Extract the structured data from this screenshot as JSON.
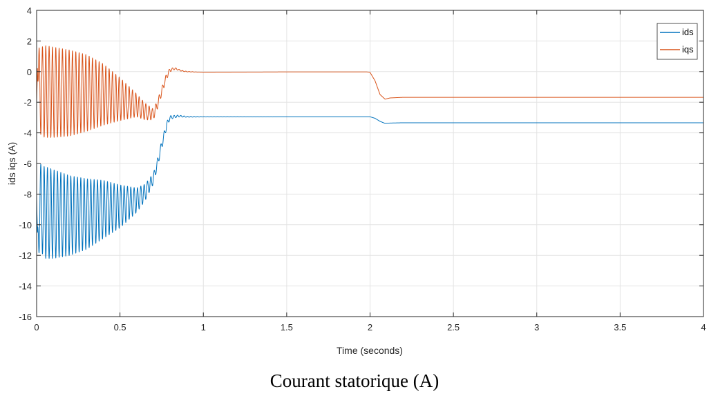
{
  "caption": "Courant statorique (A)",
  "chart_data": {
    "type": "line",
    "title": "",
    "xlabel": "Time (seconds)",
    "ylabel": "ids iqs (A)",
    "xlim": [
      0,
      4
    ],
    "ylim": [
      -16,
      4
    ],
    "x_ticks": [
      0,
      0.5,
      1,
      1.5,
      2,
      2.5,
      3,
      3.5,
      4
    ],
    "x_tick_labels": [
      "0",
      "0.5",
      "1",
      "1.5",
      "2",
      "2.5",
      "3",
      "3.5",
      "4"
    ],
    "y_ticks": [
      4,
      2,
      0,
      -2,
      -4,
      -6,
      -8,
      -10,
      -12,
      -14,
      -16
    ],
    "y_tick_labels": [
      "4",
      "2",
      "0",
      "-2",
      "-4",
      "-6",
      "-8",
      "-10",
      "-12",
      "-14",
      "-16"
    ],
    "grid": true,
    "legend_position": "top-right",
    "series": [
      {
        "name": "ids",
        "color": "#0072BD",
        "x": [
          0,
          0.005,
          0.01,
          0.02,
          0.03,
          0.05,
          0.1,
          0.2,
          0.3,
          0.4,
          0.5,
          0.6,
          0.65,
          0.7,
          0.72,
          0.75,
          0.78,
          0.8,
          0.85,
          0.9,
          1.0,
          1.5,
          1.98,
          2.0,
          2.03,
          2.06,
          2.09,
          2.12,
          2.2,
          2.5,
          3.0,
          3.5,
          4.0
        ],
        "center": [
          -8.0,
          -13.0,
          -10.5,
          -8.5,
          -9.0,
          -9.2,
          -9.3,
          -9.4,
          -9.3,
          -9.0,
          -8.8,
          -8.4,
          -7.9,
          -7.0,
          -6.2,
          -4.8,
          -3.5,
          -3.0,
          -2.9,
          -2.95,
          -2.95,
          -2.95,
          -2.95,
          -2.95,
          -3.05,
          -3.25,
          -3.38,
          -3.36,
          -3.34,
          -3.34,
          -3.34,
          -3.34,
          -3.34
        ],
        "amplitude": [
          0.5,
          2.5,
          2.0,
          2.6,
          2.8,
          3.0,
          2.9,
          2.6,
          2.3,
          1.9,
          1.4,
          0.8,
          0.55,
          0.35,
          0.3,
          0.28,
          0.22,
          0.12,
          0.06,
          0.03,
          0.01,
          0,
          0,
          0,
          0,
          0,
          0,
          0,
          0,
          0,
          0,
          0,
          0
        ]
      },
      {
        "name": "iqs",
        "color": "#D95319",
        "x": [
          0,
          0.005,
          0.01,
          0.02,
          0.03,
          0.05,
          0.1,
          0.2,
          0.3,
          0.4,
          0.5,
          0.6,
          0.65,
          0.7,
          0.72,
          0.75,
          0.78,
          0.8,
          0.83,
          0.87,
          0.9,
          1.0,
          1.5,
          1.98,
          2.0,
          2.03,
          2.06,
          2.09,
          2.12,
          2.2,
          2.5,
          3.0,
          3.5,
          4.0
        ],
        "center": [
          -2.0,
          2.0,
          -0.5,
          -1.2,
          -1.3,
          -1.3,
          -1.35,
          -1.4,
          -1.4,
          -1.5,
          -1.8,
          -2.2,
          -2.6,
          -2.8,
          -2.3,
          -1.3,
          -0.3,
          0.1,
          0.2,
          0.05,
          0.0,
          -0.05,
          -0.02,
          -0.02,
          -0.05,
          -0.6,
          -1.5,
          -1.8,
          -1.72,
          -1.68,
          -1.68,
          -1.68,
          -1.68,
          -1.68
        ],
        "amplitude": [
          1.0,
          1.8,
          2.0,
          2.8,
          2.9,
          3.0,
          2.95,
          2.8,
          2.5,
          2.0,
          1.4,
          0.75,
          0.55,
          0.35,
          0.3,
          0.25,
          0.2,
          0.12,
          0.06,
          0.03,
          0.02,
          0.0,
          0,
          0,
          0,
          0,
          0,
          0,
          0,
          0,
          0,
          0,
          0,
          0
        ]
      }
    ],
    "oscillation_frequency_hz": 50
  }
}
